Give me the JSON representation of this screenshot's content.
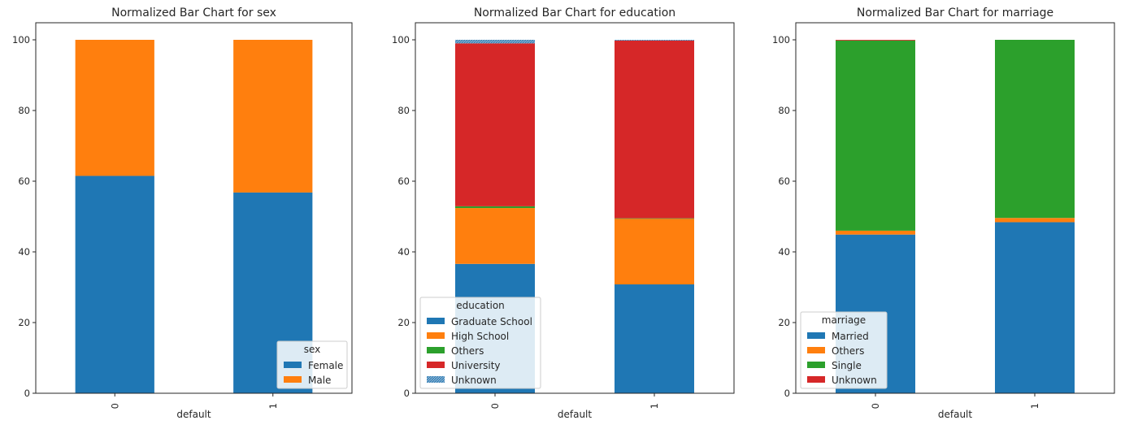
{
  "chart_data": [
    {
      "type": "bar",
      "stacked": true,
      "title": "Normalized Bar Chart for sex",
      "xlabel": "default",
      "ylabel": "",
      "ylim": [
        0,
        100
      ],
      "yticks": [
        0,
        20,
        40,
        60,
        80,
        100
      ],
      "categories": [
        "0",
        "1"
      ],
      "legend_title": "sex",
      "legend_position": "lower-right",
      "series": [
        {
          "name": "Female",
          "color": "#1f77b4",
          "values": [
            61.5,
            56.8
          ]
        },
        {
          "name": "Male",
          "color": "#ff7f0e",
          "values": [
            38.5,
            43.2
          ]
        }
      ]
    },
    {
      "type": "bar",
      "stacked": true,
      "title": "Normalized Bar Chart for education",
      "xlabel": "default",
      "ylabel": "",
      "ylim": [
        0,
        100
      ],
      "yticks": [
        0,
        20,
        40,
        60,
        80,
        100
      ],
      "categories": [
        "0",
        "1"
      ],
      "legend_title": "education",
      "legend_position": "lower-left",
      "series": [
        {
          "name": "Graduate School",
          "color": "#1f77b4",
          "values": [
            36.6,
            30.8
          ]
        },
        {
          "name": "High School",
          "color": "#ff7f0e",
          "values": [
            15.8,
            18.6
          ]
        },
        {
          "name": "Others",
          "color": "#2ca02c",
          "values": [
            0.5,
            0.1
          ]
        },
        {
          "name": "University",
          "color": "#d62728",
          "values": [
            46.1,
            50.3
          ]
        },
        {
          "name": "Unknown",
          "color": "#1f77b4",
          "hatch": true,
          "values": [
            1.0,
            0.2
          ]
        }
      ]
    },
    {
      "type": "bar",
      "stacked": true,
      "title": "Normalized Bar Chart for marriage",
      "xlabel": "default",
      "ylabel": "",
      "ylim": [
        0,
        100
      ],
      "yticks": [
        0,
        20,
        40,
        60,
        80,
        100
      ],
      "categories": [
        "0",
        "1"
      ],
      "legend_title": "marriage",
      "legend_position": "lower-left",
      "series": [
        {
          "name": "Married",
          "color": "#1f77b4",
          "values": [
            44.9,
            48.4
          ]
        },
        {
          "name": "Others",
          "color": "#ff7f0e",
          "values": [
            1.1,
            1.2
          ]
        },
        {
          "name": "Single",
          "color": "#2ca02c",
          "values": [
            53.8,
            50.4
          ]
        },
        {
          "name": "Unknown",
          "color": "#d62728",
          "values": [
            0.2,
            0.0
          ]
        }
      ]
    }
  ]
}
